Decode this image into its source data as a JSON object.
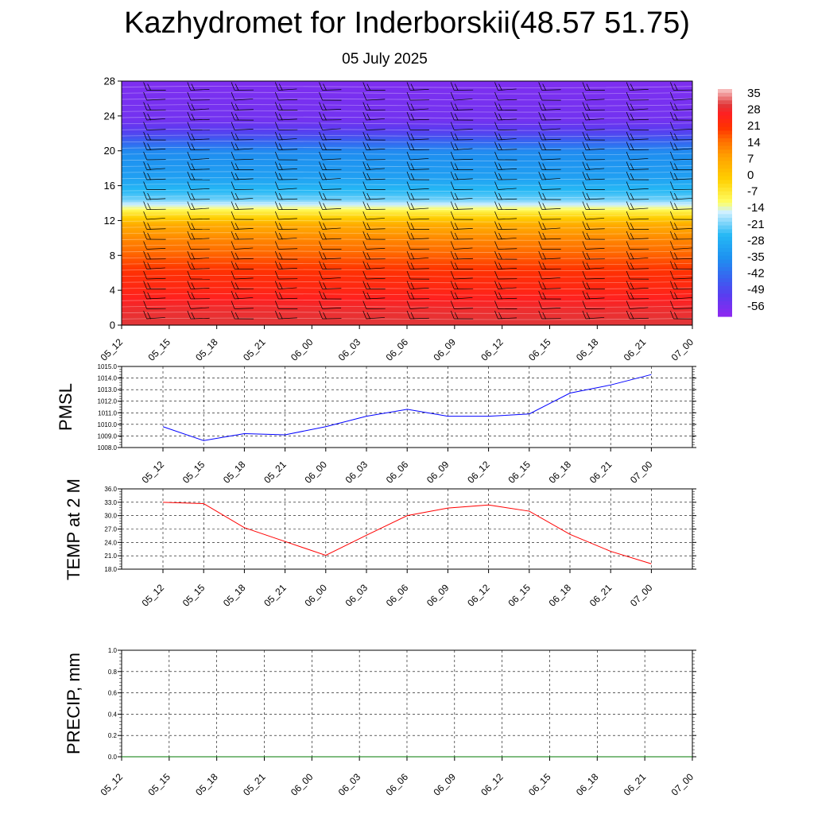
{
  "title": "Kazhydromet for Inderborskii(48.57 51.75)",
  "subtitle": "05 July 2025",
  "colors": {
    "pmsl_line": "#0000ff",
    "temp_line": "#ff0000",
    "precip_line": "#007a00",
    "gridline": "#000000",
    "colorbar": [
      "#f6b8b8",
      "#ff2020",
      "#ff3300",
      "#ff6a00",
      "#ffa000",
      "#ffcf00",
      "#ffff66",
      "#d0f0ff",
      "#25b8f5",
      "#1e90f0",
      "#3a60f0",
      "#5a3cf0",
      "#8a2af0"
    ]
  },
  "chart_data": [
    {
      "id": "cross_section",
      "type": "heatmap",
      "title": "",
      "x": [
        "05_12",
        "05_15",
        "05_18",
        "05_21",
        "06_00",
        "06_03",
        "06_06",
        "06_09",
        "06_12",
        "06_15",
        "06_18",
        "06_21",
        "07_00"
      ],
      "yticks": [
        0,
        4,
        8,
        12,
        16,
        20,
        24,
        28
      ],
      "ylim": [
        0,
        28
      ],
      "levels": [
        [
          0,
          30
        ],
        [
          2,
          28
        ],
        [
          4,
          24
        ],
        [
          6,
          21
        ],
        [
          8,
          16
        ],
        [
          10,
          11
        ],
        [
          11.5,
          6
        ],
        [
          13,
          -8
        ],
        [
          13.6,
          -14
        ],
        [
          14.5,
          -22
        ],
        [
          17,
          -32
        ],
        [
          20,
          -37
        ],
        [
          22,
          -50
        ],
        [
          23.5,
          -56
        ],
        [
          28,
          -58
        ]
      ],
      "colorbar": {
        "labels": [
          "35",
          "28",
          "21",
          "14",
          "7",
          "0",
          "-7",
          "-14",
          "-21",
          "-28",
          "-35",
          "-42",
          "-49",
          "-56"
        ]
      },
      "overlay": "wind barbs"
    },
    {
      "id": "pmsl",
      "type": "line",
      "ylabel": "PMSL",
      "x": [
        "05_12",
        "05_15",
        "05_18",
        "05_21",
        "06_00",
        "06_03",
        "06_06",
        "06_09",
        "06_12",
        "06_15",
        "06_18",
        "06_21",
        "07_00"
      ],
      "values": [
        1009.8,
        1008.6,
        1009.2,
        1009.1,
        1009.8,
        1010.7,
        1011.3,
        1010.7,
        1010.7,
        1010.9,
        1012.7,
        1013.4,
        1014.3
      ],
      "yticks": [
        "1008.0",
        "1009.0",
        "1010.0",
        "1011.0",
        "1012.0",
        "1013.0",
        "1014.0",
        "1015.0"
      ],
      "ylim": [
        1008.0,
        1015.0
      ],
      "grid": true
    },
    {
      "id": "temp",
      "type": "line",
      "ylabel": "TEMP at 2 M",
      "x": [
        "05_12",
        "05_15",
        "05_18",
        "05_21",
        "06_00",
        "06_03",
        "06_06",
        "06_09",
        "06_12",
        "06_15",
        "06_18",
        "06_21",
        "07_00"
      ],
      "values": [
        33.0,
        32.7,
        27.3,
        24.2,
        21.1,
        25.6,
        30.0,
        31.7,
        32.4,
        31.0,
        25.8,
        22.0,
        19.2
      ],
      "yticks": [
        "18.0",
        "21.0",
        "24.0",
        "27.0",
        "30.0",
        "33.0",
        "36.0"
      ],
      "ylim": [
        18.0,
        36.0
      ],
      "grid": true
    },
    {
      "id": "precip",
      "type": "line",
      "ylabel": "PRECIP, mm",
      "x": [
        "05_12",
        "05_15",
        "05_18",
        "05_21",
        "06_00",
        "06_03",
        "06_06",
        "06_09",
        "06_12",
        "06_15",
        "06_18",
        "06_21",
        "07_00"
      ],
      "values": [
        0,
        0,
        0,
        0,
        0,
        0,
        0,
        0,
        0,
        0,
        0,
        0,
        0
      ],
      "yticks": [
        "0.0",
        "0.2",
        "0.4",
        "0.6",
        "0.8",
        "1.0"
      ],
      "ylim": [
        0.0,
        1.0
      ],
      "grid": true
    }
  ]
}
